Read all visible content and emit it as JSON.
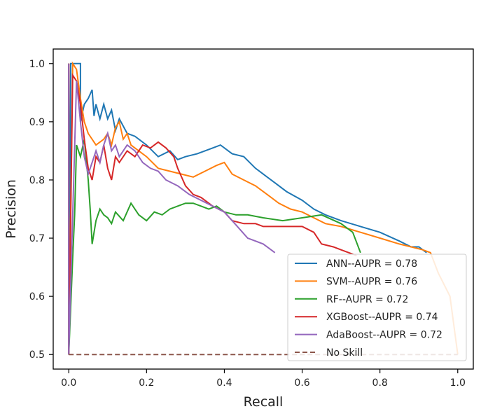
{
  "chart_data": {
    "type": "line",
    "title": "",
    "xlabel": "Recall",
    "ylabel": "Precision",
    "xlim": [
      -0.04,
      1.04
    ],
    "ylim": [
      0.475,
      1.025
    ],
    "xticks": [
      "0.0",
      "0.2",
      "0.4",
      "0.6",
      "0.8",
      "1.0"
    ],
    "yticks": [
      "0.5",
      "0.6",
      "0.7",
      "0.8",
      "0.9",
      "1.0"
    ],
    "grid": false,
    "legend_position": "lower-right",
    "series": [
      {
        "name": "ANN--AUPR = 0.78",
        "color": "#1f77b4",
        "dash": "solid",
        "points": [
          [
            0.0,
            1.0
          ],
          [
            0.0,
            0.5
          ],
          [
            0.005,
            1.0
          ],
          [
            0.03,
            1.0
          ],
          [
            0.03,
            0.9
          ],
          [
            0.04,
            0.93
          ],
          [
            0.05,
            0.94
          ],
          [
            0.06,
            0.955
          ],
          [
            0.065,
            0.91
          ],
          [
            0.07,
            0.93
          ],
          [
            0.08,
            0.905
          ],
          [
            0.09,
            0.93
          ],
          [
            0.1,
            0.905
          ],
          [
            0.11,
            0.92
          ],
          [
            0.12,
            0.885
          ],
          [
            0.13,
            0.905
          ],
          [
            0.15,
            0.88
          ],
          [
            0.17,
            0.875
          ],
          [
            0.2,
            0.86
          ],
          [
            0.23,
            0.84
          ],
          [
            0.26,
            0.85
          ],
          [
            0.28,
            0.835
          ],
          [
            0.3,
            0.84
          ],
          [
            0.33,
            0.845
          ],
          [
            0.35,
            0.85
          ],
          [
            0.37,
            0.855
          ],
          [
            0.39,
            0.86
          ],
          [
            0.42,
            0.845
          ],
          [
            0.45,
            0.84
          ],
          [
            0.48,
            0.82
          ],
          [
            0.5,
            0.81
          ],
          [
            0.53,
            0.795
          ],
          [
            0.56,
            0.78
          ],
          [
            0.6,
            0.765
          ],
          [
            0.63,
            0.75
          ],
          [
            0.66,
            0.74
          ],
          [
            0.7,
            0.73
          ],
          [
            0.75,
            0.72
          ],
          [
            0.8,
            0.71
          ],
          [
            0.85,
            0.695
          ],
          [
            0.88,
            0.685
          ],
          [
            0.9,
            0.685
          ],
          [
            0.92,
            0.675
          ]
        ]
      },
      {
        "name": "SVM--AUPR = 0.76",
        "color": "#ff7f0e",
        "dash": "solid",
        "points": [
          [
            0.0,
            1.0
          ],
          [
            0.0,
            0.5
          ],
          [
            0.01,
            1.0
          ],
          [
            0.02,
            0.99
          ],
          [
            0.03,
            0.94
          ],
          [
            0.04,
            0.9
          ],
          [
            0.05,
            0.88
          ],
          [
            0.07,
            0.86
          ],
          [
            0.09,
            0.87
          ],
          [
            0.1,
            0.88
          ],
          [
            0.11,
            0.86
          ],
          [
            0.12,
            0.89
          ],
          [
            0.13,
            0.9
          ],
          [
            0.14,
            0.87
          ],
          [
            0.15,
            0.88
          ],
          [
            0.16,
            0.86
          ],
          [
            0.17,
            0.855
          ],
          [
            0.2,
            0.84
          ],
          [
            0.23,
            0.82
          ],
          [
            0.26,
            0.815
          ],
          [
            0.29,
            0.81
          ],
          [
            0.32,
            0.805
          ],
          [
            0.35,
            0.815
          ],
          [
            0.38,
            0.825
          ],
          [
            0.4,
            0.83
          ],
          [
            0.42,
            0.81
          ],
          [
            0.45,
            0.8
          ],
          [
            0.48,
            0.79
          ],
          [
            0.51,
            0.775
          ],
          [
            0.54,
            0.76
          ],
          [
            0.57,
            0.75
          ],
          [
            0.6,
            0.745
          ],
          [
            0.63,
            0.735
          ],
          [
            0.66,
            0.725
          ],
          [
            0.7,
            0.72
          ],
          [
            0.75,
            0.71
          ],
          [
            0.8,
            0.7
          ],
          [
            0.85,
            0.69
          ],
          [
            0.88,
            0.685
          ],
          [
            0.91,
            0.68
          ],
          [
            0.93,
            0.675
          ],
          [
            0.95,
            0.64
          ],
          [
            0.98,
            0.6
          ],
          [
            1.0,
            0.5
          ]
        ]
      },
      {
        "name": "RF--AUPR = 0.72",
        "color": "#2ca02c",
        "dash": "solid",
        "points": [
          [
            0.0,
            1.0
          ],
          [
            0.0,
            0.5
          ],
          [
            0.01,
            0.665
          ],
          [
            0.015,
            0.74
          ],
          [
            0.02,
            0.86
          ],
          [
            0.03,
            0.84
          ],
          [
            0.04,
            0.87
          ],
          [
            0.05,
            0.8
          ],
          [
            0.055,
            0.75
          ],
          [
            0.06,
            0.69
          ],
          [
            0.07,
            0.73
          ],
          [
            0.08,
            0.75
          ],
          [
            0.09,
            0.74
          ],
          [
            0.1,
            0.735
          ],
          [
            0.11,
            0.725
          ],
          [
            0.12,
            0.745
          ],
          [
            0.14,
            0.73
          ],
          [
            0.16,
            0.76
          ],
          [
            0.18,
            0.74
          ],
          [
            0.2,
            0.73
          ],
          [
            0.22,
            0.745
          ],
          [
            0.24,
            0.74
          ],
          [
            0.26,
            0.75
          ],
          [
            0.28,
            0.755
          ],
          [
            0.3,
            0.76
          ],
          [
            0.32,
            0.76
          ],
          [
            0.34,
            0.755
          ],
          [
            0.36,
            0.75
          ],
          [
            0.38,
            0.755
          ],
          [
            0.4,
            0.745
          ],
          [
            0.43,
            0.74
          ],
          [
            0.46,
            0.74
          ],
          [
            0.5,
            0.735
          ],
          [
            0.55,
            0.73
          ],
          [
            0.6,
            0.735
          ],
          [
            0.65,
            0.74
          ],
          [
            0.7,
            0.725
          ],
          [
            0.73,
            0.71
          ],
          [
            0.75,
            0.675
          ]
        ]
      },
      {
        "name": "XGBoost--AUPR = 0.74",
        "color": "#d62728",
        "dash": "solid",
        "points": [
          [
            0.0,
            1.0
          ],
          [
            0.0,
            0.5
          ],
          [
            0.01,
            0.98
          ],
          [
            0.02,
            0.97
          ],
          [
            0.03,
            0.93
          ],
          [
            0.04,
            0.87
          ],
          [
            0.05,
            0.82
          ],
          [
            0.06,
            0.8
          ],
          [
            0.07,
            0.84
          ],
          [
            0.08,
            0.83
          ],
          [
            0.09,
            0.86
          ],
          [
            0.1,
            0.82
          ],
          [
            0.11,
            0.8
          ],
          [
            0.12,
            0.84
          ],
          [
            0.13,
            0.83
          ],
          [
            0.15,
            0.85
          ],
          [
            0.17,
            0.84
          ],
          [
            0.19,
            0.86
          ],
          [
            0.21,
            0.855
          ],
          [
            0.23,
            0.865
          ],
          [
            0.25,
            0.855
          ],
          [
            0.27,
            0.84
          ],
          [
            0.28,
            0.82
          ],
          [
            0.3,
            0.79
          ],
          [
            0.32,
            0.775
          ],
          [
            0.34,
            0.77
          ],
          [
            0.37,
            0.755
          ],
          [
            0.4,
            0.745
          ],
          [
            0.42,
            0.73
          ],
          [
            0.45,
            0.725
          ],
          [
            0.48,
            0.725
          ],
          [
            0.5,
            0.72
          ],
          [
            0.55,
            0.72
          ],
          [
            0.6,
            0.72
          ],
          [
            0.63,
            0.71
          ],
          [
            0.65,
            0.69
          ],
          [
            0.68,
            0.685
          ],
          [
            0.7,
            0.68
          ],
          [
            0.72,
            0.675
          ],
          [
            0.74,
            0.67
          ]
        ]
      },
      {
        "name": "AdaBoost--AUPR = 0.72",
        "color": "#9467bd",
        "dash": "solid",
        "points": [
          [
            0.0,
            1.0
          ],
          [
            0.0,
            0.5
          ],
          [
            0.02,
            0.97
          ],
          [
            0.03,
            0.9
          ],
          [
            0.04,
            0.84
          ],
          [
            0.05,
            0.81
          ],
          [
            0.06,
            0.83
          ],
          [
            0.07,
            0.85
          ],
          [
            0.08,
            0.83
          ],
          [
            0.09,
            0.86
          ],
          [
            0.1,
            0.88
          ],
          [
            0.11,
            0.85
          ],
          [
            0.12,
            0.86
          ],
          [
            0.13,
            0.84
          ],
          [
            0.14,
            0.85
          ],
          [
            0.15,
            0.86
          ],
          [
            0.17,
            0.85
          ],
          [
            0.19,
            0.83
          ],
          [
            0.21,
            0.82
          ],
          [
            0.23,
            0.815
          ],
          [
            0.25,
            0.8
          ],
          [
            0.28,
            0.79
          ],
          [
            0.31,
            0.775
          ],
          [
            0.34,
            0.765
          ],
          [
            0.37,
            0.755
          ],
          [
            0.4,
            0.745
          ],
          [
            0.42,
            0.73
          ],
          [
            0.44,
            0.715
          ],
          [
            0.46,
            0.7
          ],
          [
            0.48,
            0.695
          ],
          [
            0.5,
            0.69
          ],
          [
            0.53,
            0.675
          ]
        ]
      },
      {
        "name": "No Skill",
        "color": "#8c564b",
        "dash": "dashed",
        "points": [
          [
            0.0,
            0.5
          ],
          [
            1.0,
            0.5
          ]
        ]
      }
    ]
  }
}
